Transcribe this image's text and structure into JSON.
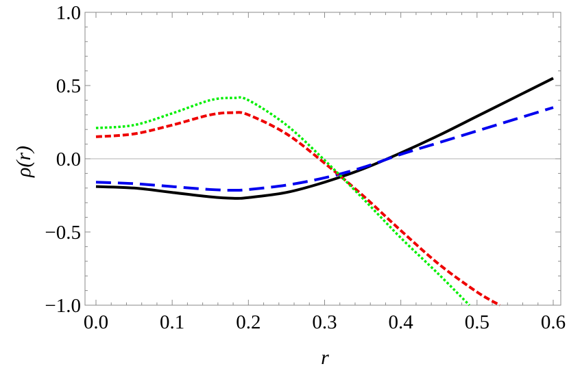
{
  "chart_data": {
    "type": "line",
    "xlabel": "r",
    "ylabel": "ρ(r)",
    "xlim": [
      0,
      0.6
    ],
    "ylim": [
      -1.0,
      1.0
    ],
    "x_ticks": [
      0.0,
      0.1,
      0.2,
      0.3,
      0.4,
      0.5,
      0.6
    ],
    "x_tick_labels": [
      "0.0",
      "0.1",
      "0.2",
      "0.3",
      "0.4",
      "0.5",
      "0.6"
    ],
    "y_ticks": [
      1.0,
      0.5,
      0.0,
      -0.5,
      -1.0
    ],
    "y_tick_labels": [
      "1.0",
      "0.5",
      "0.0",
      "−0.5",
      "−1.0"
    ],
    "zero_line": true,
    "grid": false,
    "series": [
      {
        "color": "#000000",
        "style": "solid",
        "x": [
          0.0,
          0.05,
          0.1,
          0.15,
          0.18,
          0.2,
          0.25,
          0.3,
          0.35,
          0.4,
          0.45,
          0.5,
          0.55,
          0.6
        ],
        "y": [
          -0.19,
          -0.2,
          -0.23,
          -0.26,
          -0.27,
          -0.265,
          -0.23,
          -0.16,
          -0.07,
          0.04,
          0.16,
          0.29,
          0.42,
          0.55
        ]
      },
      {
        "color": "#0000ee",
        "style": "dashed",
        "x": [
          0.0,
          0.05,
          0.1,
          0.15,
          0.18,
          0.2,
          0.25,
          0.3,
          0.35,
          0.4,
          0.45,
          0.5,
          0.55,
          0.6
        ],
        "y": [
          -0.16,
          -0.17,
          -0.19,
          -0.21,
          -0.215,
          -0.21,
          -0.18,
          -0.13,
          -0.06,
          0.03,
          0.11,
          0.19,
          0.27,
          0.35
        ]
      },
      {
        "color": "#ee0000",
        "style": "dashed-fine",
        "x": [
          0.0,
          0.05,
          0.1,
          0.15,
          0.18,
          0.2,
          0.25,
          0.3,
          0.35,
          0.4,
          0.45,
          0.5,
          0.53
        ],
        "y": [
          0.15,
          0.17,
          0.23,
          0.3,
          0.315,
          0.3,
          0.17,
          -0.03,
          -0.25,
          -0.49,
          -0.72,
          -0.91,
          -1.0
        ]
      },
      {
        "color": "#00ee00",
        "style": "dotted",
        "x": [
          0.0,
          0.05,
          0.1,
          0.15,
          0.18,
          0.2,
          0.25,
          0.3,
          0.35,
          0.4,
          0.45,
          0.49
        ],
        "y": [
          0.21,
          0.23,
          0.31,
          0.4,
          0.415,
          0.4,
          0.23,
          -0.01,
          -0.27,
          -0.54,
          -0.79,
          -1.0
        ]
      }
    ]
  }
}
